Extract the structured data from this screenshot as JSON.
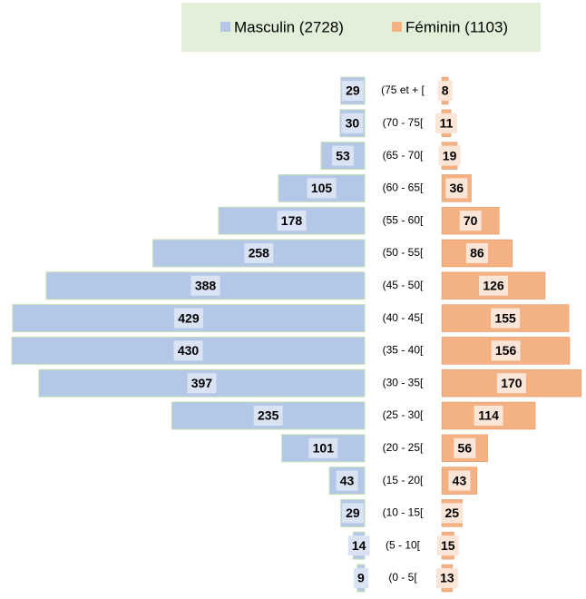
{
  "chart_data": {
    "type": "pyramid",
    "categories": [
      "(75 et + [",
      "(70 - 75[",
      "(65 - 70[",
      "(60 - 65[",
      "(55 - 60[",
      "(50 - 55[",
      "(45 - 50[",
      "(40 - 45[",
      "(35 - 40[",
      "(30 - 35[",
      "(25 - 30[",
      "(20 - 25[",
      "(15 - 20[",
      "(10 - 15[",
      "(5 - 10[",
      "(0 - 5["
    ],
    "series": [
      {
        "name": "Masculin (2728)",
        "color": "#b4c7e7",
        "values": [
          29,
          30,
          53,
          105,
          178,
          258,
          388,
          429,
          430,
          397,
          235,
          101,
          43,
          29,
          14,
          9
        ]
      },
      {
        "name": "Féminin (1103)",
        "color": "#f4b183",
        "values": [
          8,
          11,
          19,
          36,
          70,
          86,
          126,
          155,
          156,
          170,
          114,
          56,
          43,
          25,
          15,
          13
        ]
      }
    ]
  }
}
